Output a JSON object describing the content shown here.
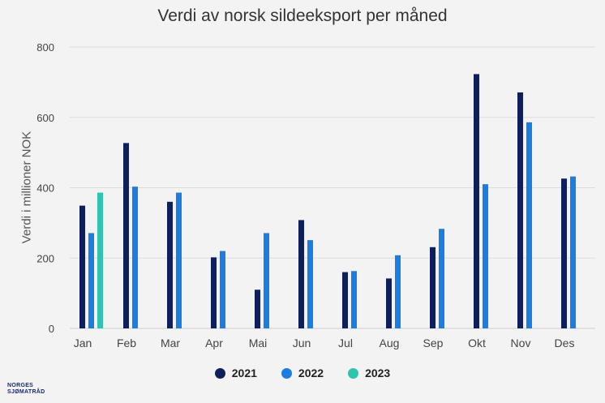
{
  "chart_data": {
    "type": "bar",
    "title": "Verdi av norsk sildeeksport per måned",
    "ylabel": "Verdi i millioner NOK",
    "xlabel": "",
    "ylim": [
      0,
      800
    ],
    "yticks": [
      0,
      200,
      400,
      600,
      800
    ],
    "grid": true,
    "legend_position": "bottom",
    "categories": [
      "Jan",
      "Feb",
      "Mar",
      "Apr",
      "Mai",
      "Jun",
      "Jul",
      "Aug",
      "Sep",
      "Okt",
      "Nov",
      "Des"
    ],
    "series": [
      {
        "name": "2021",
        "color": "#0f1f5c",
        "values": [
          349,
          527,
          360,
          202,
          110,
          308,
          160,
          142,
          231,
          723,
          671,
          426
        ]
      },
      {
        "name": "2022",
        "color": "#1a7de0",
        "values": [
          271,
          403,
          386,
          220,
          271,
          251,
          163,
          208,
          283,
          410,
          586,
          432
        ]
      },
      {
        "name": "2023",
        "color": "#2ec4b0",
        "values": [
          386,
          null,
          null,
          null,
          null,
          null,
          null,
          null,
          null,
          null,
          null,
          null
        ]
      }
    ]
  },
  "logo": {
    "line1": "NORGES",
    "line2": "SJØMATRÅD"
  }
}
